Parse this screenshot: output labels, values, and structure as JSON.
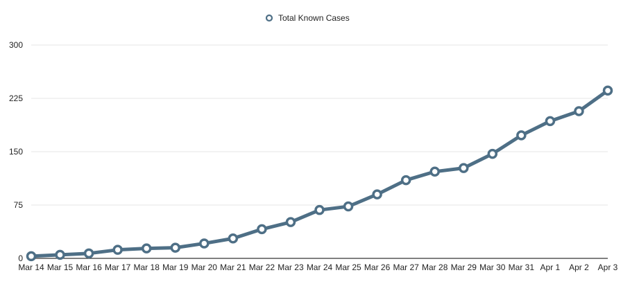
{
  "chart_data": {
    "type": "line",
    "title": "",
    "xlabel": "",
    "ylabel": "",
    "legend": {
      "position": "top-center",
      "entries": [
        "Total Known Cases"
      ]
    },
    "categories": [
      "Mar 14",
      "Mar 15",
      "Mar 16",
      "Mar 17",
      "Mar 18",
      "Mar 19",
      "Mar 20",
      "Mar 21",
      "Mar 22",
      "Mar 23",
      "Mar 24",
      "Mar 25",
      "Mar 26",
      "Mar 27",
      "Mar 28",
      "Mar 29",
      "Mar 30",
      "Mar 31",
      "Apr 1",
      "Apr 2",
      "Apr 3"
    ],
    "series": [
      {
        "name": "Total Known Cases",
        "color": "#4e6f86",
        "values": [
          3,
          5,
          7,
          12,
          14,
          15,
          21,
          28,
          41,
          51,
          68,
          73,
          90,
          110,
          122,
          127,
          147,
          173,
          193,
          207,
          236
        ]
      }
    ],
    "yticks": [
      "0",
      "75",
      "150",
      "225",
      "300"
    ],
    "ylim": [
      0,
      300
    ],
    "grid": true
  }
}
